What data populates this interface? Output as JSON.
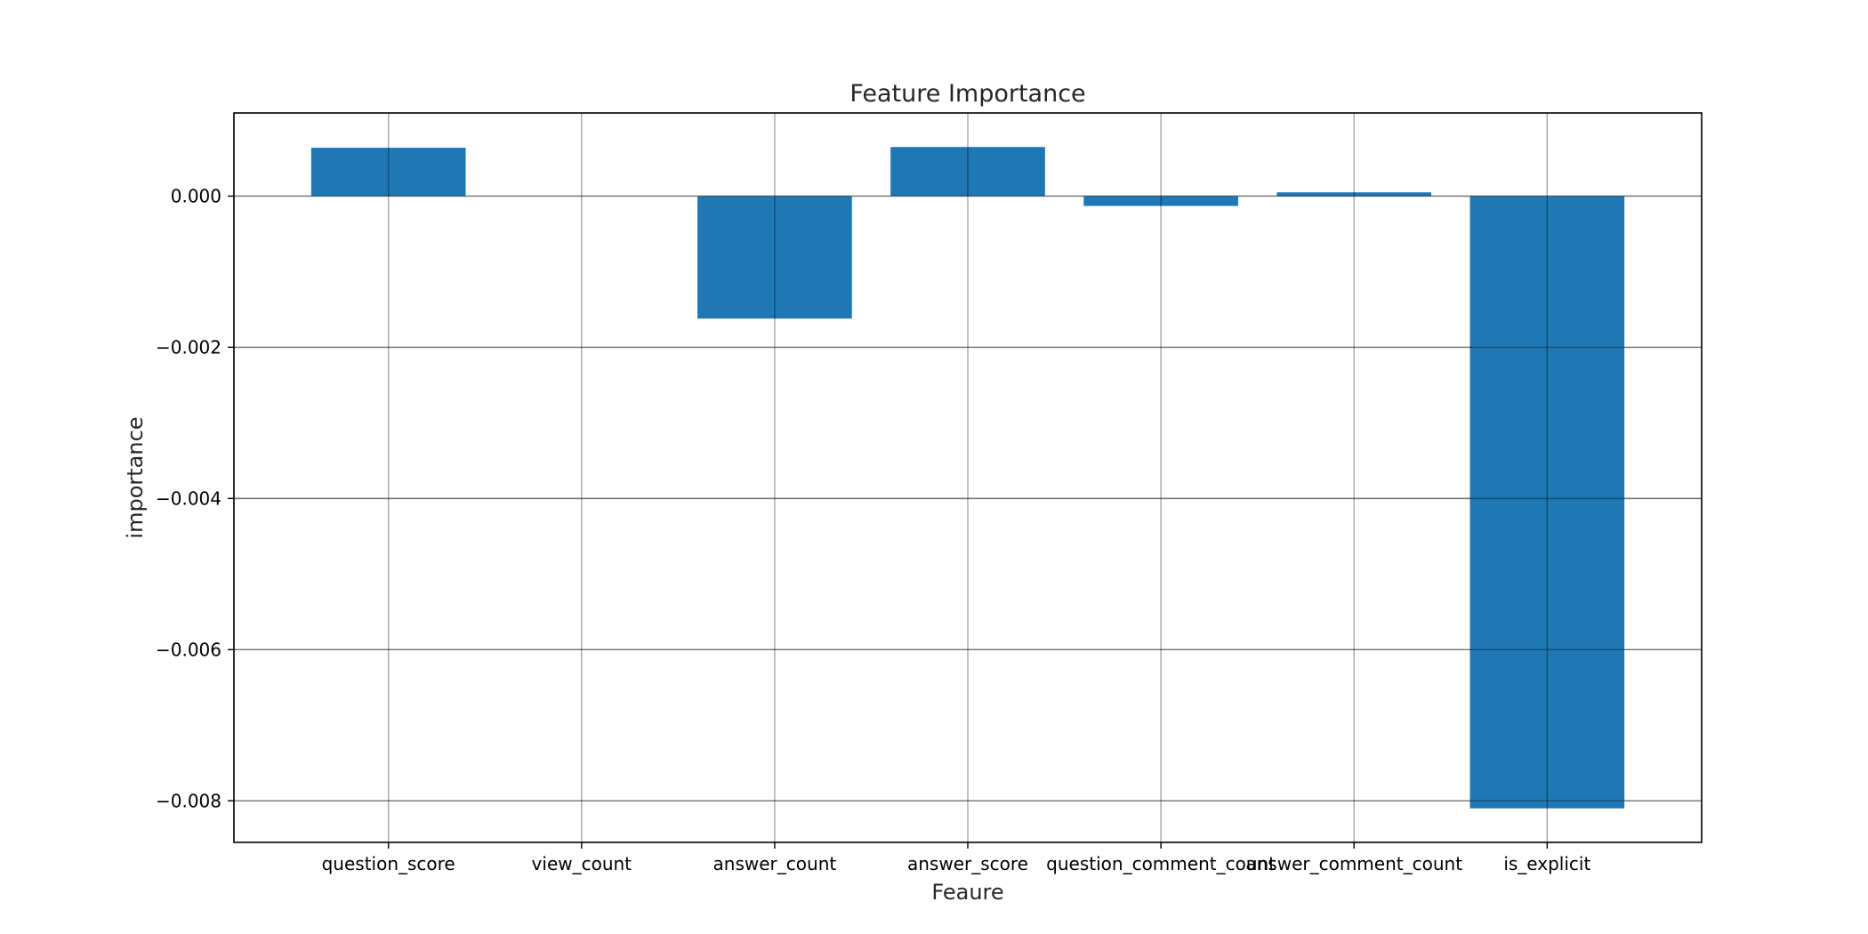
{
  "chart_data": {
    "type": "bar",
    "title": "Feature Importance",
    "xlabel": "Feaure",
    "ylabel": "importance",
    "categories": [
      "question_score",
      "view_count",
      "answer_count",
      "answer_score",
      "question_comment_count",
      "answer_comment_count",
      "is_explicit"
    ],
    "values": [
      0.00064,
      0.0,
      -0.00162,
      0.00065,
      -0.00013,
      5e-05,
      -0.0081
    ],
    "ylim": [
      -0.00855,
      0.0011
    ],
    "yticks": [
      0.0,
      -0.002,
      -0.004,
      -0.006,
      -0.008
    ],
    "ytick_labels": [
      "0.000",
      "−0.002",
      "−0.004",
      "−0.006",
      "−0.008"
    ],
    "grid": true,
    "bar_color": "#1f77b4",
    "legend": "none"
  }
}
